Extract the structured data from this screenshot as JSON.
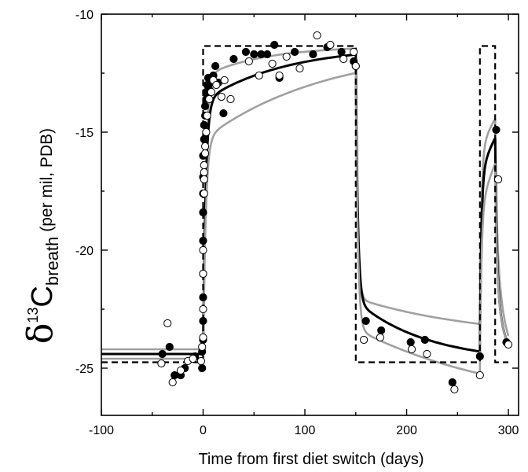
{
  "chart_data": {
    "type": "scatter",
    "xlabel": "Time from first diet switch (days)",
    "ylabel": {
      "delta": "δ",
      "superscript": "13",
      "element": "C",
      "subscript": "breath",
      "unit": "(per mil, PDB)"
    },
    "xlim": [
      -100,
      310
    ],
    "ylim": [
      -27,
      -10
    ],
    "xticks": [
      -100,
      0,
      100,
      200,
      300
    ],
    "yticks": [
      -10,
      -15,
      -20,
      -25
    ],
    "xtick_labels": [
      "-100",
      "0",
      "100",
      "200",
      "300"
    ],
    "ytick_labels": [
      "-10",
      "-15",
      "-20",
      "-25"
    ],
    "grid": false,
    "colors": {
      "filled": "#000000",
      "open_fill": "#ffffff",
      "model": "#000000",
      "bounds": "#a0a0a0",
      "diet": "#000000"
    },
    "series": [
      {
        "marker": "filled-circle",
        "points": [
          [
            -40,
            -24.4
          ],
          [
            -33,
            -24.1
          ],
          [
            -28,
            -25.3
          ],
          [
            -22,
            -25.3
          ],
          [
            -18,
            -25.0
          ],
          [
            -8,
            -24.5
          ],
          [
            -1,
            -25.0
          ],
          [
            -1,
            -24.3
          ],
          [
            0,
            -23.8
          ],
          [
            0,
            -23.0
          ],
          [
            0,
            -22.0
          ],
          [
            0,
            -21.0
          ],
          [
            0,
            -19.6
          ],
          [
            0,
            -18.4
          ],
          [
            0,
            -17.6
          ],
          [
            0,
            -16.9
          ],
          [
            0,
            -16.0
          ],
          [
            1,
            -15.3
          ],
          [
            1,
            -14.7
          ],
          [
            2,
            -14.3
          ],
          [
            2,
            -13.9
          ],
          [
            3,
            -13.6
          ],
          [
            3,
            -13.3
          ],
          [
            4,
            -13.0
          ],
          [
            5,
            -12.7
          ],
          [
            6,
            -13.2
          ],
          [
            8,
            -12.9
          ],
          [
            10,
            -12.6
          ],
          [
            12,
            -12.2
          ],
          [
            15,
            -12.9
          ],
          [
            20,
            -14.2
          ],
          [
            30,
            -11.9
          ],
          [
            42,
            -11.6
          ],
          [
            50,
            -11.7
          ],
          [
            57,
            -11.7
          ],
          [
            63,
            -11.7
          ],
          [
            70,
            -11.3
          ],
          [
            75,
            -12.7
          ],
          [
            90,
            -11.6
          ],
          [
            108,
            -11.7
          ],
          [
            122,
            -11.4
          ],
          [
            136,
            -11.6
          ],
          [
            148,
            -12.0
          ],
          [
            150,
            -12.2
          ],
          [
            160,
            -23.0
          ],
          [
            175,
            -23.4
          ],
          [
            204,
            -23.9
          ],
          [
            218,
            -23.8
          ],
          [
            245,
            -25.6
          ],
          [
            272,
            -24.5
          ],
          [
            288,
            -14.9
          ],
          [
            298,
            -23.9
          ]
        ]
      },
      {
        "marker": "open-circle",
        "points": [
          [
            -41,
            -24.8
          ],
          [
            -35,
            -23.1
          ],
          [
            -30,
            -25.6
          ],
          [
            -22,
            -25.1
          ],
          [
            -15,
            -24.7
          ],
          [
            -10,
            -24.6
          ],
          [
            -2,
            -24.7
          ],
          [
            -1,
            -24.1
          ],
          [
            0,
            -23.7
          ],
          [
            0,
            -22.5
          ],
          [
            0,
            -21.0
          ],
          [
            0,
            -20.0
          ],
          [
            1,
            -17.6
          ],
          [
            1,
            -17.0
          ],
          [
            1,
            -16.7
          ],
          [
            1,
            -16.4
          ],
          [
            2,
            -15.9
          ],
          [
            2,
            -15.6
          ],
          [
            3,
            -15.0
          ],
          [
            4,
            -14.3
          ],
          [
            6,
            -13.6
          ],
          [
            8,
            -13.3
          ],
          [
            10,
            -12.8
          ],
          [
            13,
            -13.0
          ],
          [
            18,
            -13.5
          ],
          [
            21,
            -12.8
          ],
          [
            27,
            -13.6
          ],
          [
            45,
            -12.0
          ],
          [
            55,
            -12.6
          ],
          [
            68,
            -12.1
          ],
          [
            75,
            -12.6
          ],
          [
            82,
            -11.8
          ],
          [
            95,
            -12.3
          ],
          [
            112,
            -10.9
          ],
          [
            125,
            -11.3
          ],
          [
            138,
            -11.9
          ],
          [
            148,
            -11.6
          ],
          [
            150,
            -12.2
          ],
          [
            158,
            -23.8
          ],
          [
            174,
            -23.7
          ],
          [
            205,
            -24.2
          ],
          [
            220,
            -24.4
          ],
          [
            247,
            -25.9
          ],
          [
            272,
            -25.3
          ],
          [
            290,
            -17.0
          ],
          [
            300,
            -24.0
          ]
        ]
      }
    ],
    "lines": [
      {
        "role": "diet",
        "style": "dashed",
        "points": [
          [
            -100,
            -24.75
          ],
          [
            0,
            -24.75
          ],
          [
            0,
            -11.35
          ],
          [
            150,
            -11.35
          ],
          [
            150,
            -24.75
          ],
          [
            272,
            -24.75
          ],
          [
            272,
            -11.35
          ],
          [
            287,
            -11.35
          ],
          [
            287,
            -24.75
          ],
          [
            300,
            -24.75
          ]
        ]
      }
    ]
  }
}
